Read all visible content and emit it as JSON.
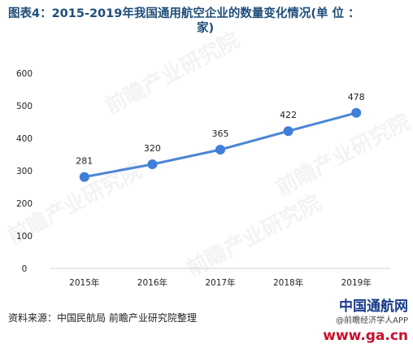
{
  "title_line1": "图表4：2015-2019年我国通用航空企业的数量变化情况(单 位 ：",
  "title_line2": "家)",
  "source": "资料来源：中国民航局 前瞻产业研究院整理",
  "watermark": "前瞻产业研究院",
  "logo": {
    "main_prefix": "中国通航网",
    "sub": "@前瞻经济学人APP",
    "domain": "www.ga.cn"
  },
  "colors": {
    "line": "#4a86d6",
    "marker": "#3f7fd8",
    "axis": "#d0d0d0",
    "title": "#1f4e79"
  },
  "chart_data": {
    "type": "line",
    "title": "图表4：2015-2019年我国通用航空企业的数量变化情况(单 位 ：家)",
    "categories": [
      "2015年",
      "2016年",
      "2017年",
      "2018年",
      "2019年"
    ],
    "values": [
      281,
      320,
      365,
      422,
      478
    ],
    "ylim": [
      0,
      600
    ],
    "yticks": [
      0,
      100,
      200,
      300,
      400,
      500,
      600
    ],
    "grid": false,
    "xlabel": "",
    "ylabel": ""
  }
}
